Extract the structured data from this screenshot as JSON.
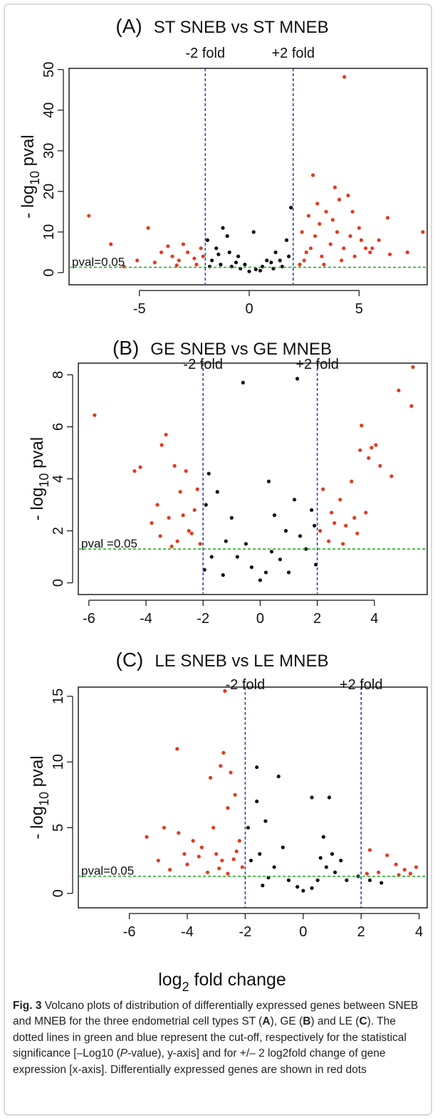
{
  "chart_data": [
    {
      "type": "scatter",
      "panel_label": "(A)",
      "title": "ST SNEB vs ST MNEB",
      "y_label": [
        "- log",
        "10",
        " pval"
      ],
      "xlim": [
        -8.2,
        8.1
      ],
      "ylim": [
        -3,
        50.3
      ],
      "xticks": [
        -5,
        0,
        5
      ],
      "yticks": [
        0,
        10,
        20,
        30,
        40,
        50
      ],
      "vlines": [
        -2,
        2
      ],
      "hline": 1.3,
      "vline_color": "#3344aa",
      "hline_color": "#22b022",
      "annotations": [
        "-2 fold",
        "+2 fold",
        "pval=0.05"
      ],
      "series": [
        {
          "color": "#111111",
          "x": [
            -1.9,
            -1.2,
            -1.5,
            -1,
            -0.5,
            0.2,
            -1.7,
            -1.3,
            -0.8,
            -0.4,
            0,
            0.3,
            0.6,
            1,
            1.4,
            1.8,
            1.9,
            1.7,
            1.2,
            0.8,
            -0.2,
            0.5,
            -0.6,
            1.5,
            -1.8,
            -0.9,
            1.1,
            -1.4
          ],
          "y": [
            8,
            11,
            6,
            9,
            4,
            10,
            3,
            2,
            1.5,
            1,
            0.3,
            0.8,
            1.5,
            2.5,
            3,
            4,
            16,
            8,
            5,
            3,
            2,
            0.5,
            2.5,
            1.5,
            1.5,
            5,
            1,
            4.5
          ]
        },
        {
          "color": "#e5391f",
          "x": [
            2.5,
            2.8,
            3,
            3.2,
            3.5,
            2.9,
            3.9,
            4.1,
            4.5,
            4.7,
            5,
            5.1,
            2.3,
            2.6,
            3.3,
            3.7,
            4,
            4.3,
            4.6,
            4.8,
            2.4,
            2.7,
            3.1,
            3.4,
            3.8,
            4.2,
            5.3,
            5.5,
            6.3,
            7.9,
            7.2,
            6.4,
            5.6,
            5.9,
            4.33,
            -7.3,
            -6.3,
            -4.6,
            -5.1,
            -4,
            -3.7,
            -3.5,
            -3.2,
            -3,
            -2.8,
            -2.5,
            -2.2,
            -4.3,
            -2.4,
            -3.3,
            -5.7,
            -2.1
          ],
          "y": [
            3,
            6,
            9,
            12,
            15,
            24,
            21,
            18,
            19,
            15,
            11,
            8,
            2,
            5,
            4,
            7,
            10,
            6,
            9,
            4,
            10,
            14,
            17,
            2,
            13,
            3,
            6,
            5,
            13.5,
            10,
            5,
            4.5,
            6,
            8,
            48.2,
            14,
            7,
            11,
            3,
            5,
            6.5,
            4,
            3,
            7,
            5,
            3.5,
            6,
            2.5,
            2,
            1.8,
            1.5,
            4
          ]
        }
      ]
    },
    {
      "type": "scatter",
      "panel_label": "(B)",
      "title": "GE SNEB vs GE MNEB",
      "y_label": [
        "- log",
        "10",
        " pval"
      ],
      "xlim": [
        -6.37,
        5.85
      ],
      "ylim": [
        -0.45,
        8.45
      ],
      "xticks": [
        -6,
        -4,
        -2,
        0,
        2,
        4
      ],
      "yticks": [
        0,
        2,
        4,
        6,
        8
      ],
      "vlines": [
        -2,
        2
      ],
      "hline": 1.3,
      "vline_color": "#3344aa",
      "hline_color": "#22b022",
      "annotations": [
        "-2 fold",
        "+2 fold",
        "pval =0.05"
      ],
      "series": [
        {
          "color": "#111111",
          "x": [
            -0.6,
            1.3,
            -1.8,
            0.3,
            -1.5,
            1.8,
            -1,
            -0.5,
            0,
            0.4,
            0.9,
            1.4,
            -1.9,
            -1.2,
            -0.3,
            0.2,
            0.7,
            1.6,
            1.9,
            -1.7,
            1.2,
            -0.8,
            0.5,
            1.95,
            -1.95,
            -1.3,
            1
          ],
          "y": [
            7.7,
            7.85,
            4.2,
            3.9,
            3.5,
            2.8,
            2.5,
            1.5,
            0.1,
            1.2,
            2,
            1.8,
            3,
            1.6,
            0.6,
            0.4,
            0.9,
            1.3,
            2.2,
            1,
            3.2,
            1,
            2.6,
            0.7,
            0.5,
            0.3,
            0.4
          ]
        },
        {
          "color": "#e5391f",
          "x": [
            -5.8,
            -4.4,
            -4.2,
            -3.3,
            -3.45,
            -3,
            -2.6,
            -3.6,
            -3.2,
            -2.8,
            -2.5,
            -3.5,
            -2.2,
            -2.9,
            -3.8,
            -2.3,
            -2.7,
            -3.1,
            -2.1,
            -2.4,
            5.35,
            4.85,
            5.3,
            3.55,
            3.5,
            3.9,
            4.05,
            4.2,
            4.6,
            3.8,
            3.2,
            2.8,
            2.2,
            2.5,
            3,
            3.7,
            2.4,
            2.9,
            3.4,
            2.1,
            2.6,
            3.3
          ],
          "y": [
            6.45,
            4.3,
            4.45,
            5.7,
            5.3,
            4.5,
            4.3,
            3,
            2.5,
            3.5,
            2,
            1.8,
            3.6,
            1.6,
            2.3,
            2.8,
            2.6,
            1.4,
            1.5,
            1.9,
            8.3,
            7.4,
            6.8,
            6.05,
            5.1,
            5.2,
            5.3,
            4.5,
            4.1,
            4.8,
            3.9,
            3.2,
            3.6,
            2.7,
            2.2,
            2.7,
            1.6,
            1.5,
            1.9,
            2,
            2.3,
            2.5
          ]
        }
      ]
    },
    {
      "type": "scatter",
      "panel_label": "(C)",
      "title": "LE SNEB vs LE MNEB",
      "y_label": [
        "- log",
        "10",
        " pval"
      ],
      "xlim": [
        -7.76,
        4.28
      ],
      "ylim": [
        -1.1,
        15.7
      ],
      "xticks": [
        -6,
        -4,
        -2,
        0,
        2,
        4
      ],
      "yticks": [
        0,
        5,
        10,
        15
      ],
      "vlines": [
        -2,
        2
      ],
      "hline": 1.3,
      "vline_color": "#3344aa",
      "hline_color": "#22b022",
      "annotations": [
        "-2 fold",
        "+2 fold",
        "pval=0.05"
      ],
      "series": [
        {
          "color": "#111111",
          "x": [
            -1.6,
            -0.85,
            0.3,
            0.9,
            -1.6,
            -1.3,
            -1.9,
            -1.5,
            -1,
            -0.5,
            0,
            0.5,
            0.8,
            1,
            0.7,
            1.3,
            1.5,
            2.3,
            2.7,
            1.9,
            -1.8,
            -1.2,
            -0.2,
            0.3,
            -0.7,
            1.1,
            0.6,
            -1.4
          ],
          "y": [
            9.6,
            8.9,
            7.3,
            7.3,
            7,
            5.5,
            5,
            3,
            2,
            1,
            0.2,
            1,
            2,
            3,
            4.3,
            2.5,
            1,
            1,
            0.8,
            1.3,
            2.5,
            1.2,
            0.5,
            0.4,
            3.5,
            1.6,
            2.7,
            0.6
          ]
        },
        {
          "color": "#e5391f",
          "x": [
            -2.7,
            -4.35,
            -2.75,
            -2.85,
            -3.2,
            -2.5,
            -2.35,
            -2.6,
            -5.4,
            -4.8,
            -4.3,
            -3.8,
            -3.5,
            -3,
            -2.8,
            -2.3,
            -2.1,
            -5,
            -4.6,
            -4,
            -3.3,
            -3.6,
            -2.6,
            -2.2,
            -3.1,
            -4.1,
            -2.4,
            -2.9,
            2.3,
            2.9,
            3.2,
            3.5,
            3.9,
            2.6,
            3.7,
            2.2,
            3.3
          ],
          "y": [
            15.4,
            11,
            10.7,
            9.7,
            8.8,
            9.2,
            7.5,
            6.5,
            4.3,
            5,
            4.6,
            4,
            3.5,
            3,
            2.5,
            3.2,
            2,
            2.5,
            1.8,
            2.2,
            1.6,
            2.8,
            1.5,
            4,
            5,
            3,
            2.6,
            1.9,
            3.3,
            2.9,
            2.2,
            1.8,
            2,
            1.6,
            1.5,
            1.5,
            1.4
          ]
        }
      ]
    }
  ],
  "x_label": [
    "log",
    "2",
    " fold change"
  ],
  "caption": [
    "Fig. 3",
    " Volcano plots of distribution of differentially expressed genes between SNEB and MNEB for the three endometrial cell types ST (",
    "A",
    "), GE (",
    "B",
    ") and LE (",
    "C",
    "). The dotted lines in green and blue represent the cut-off, respectively for the statistical significance [–Log10 (",
    "P",
    "-value), y-axis] and for +/– 2 log2fold change of gene expression [x-axis]. Differentially expressed genes are shown in red dots"
  ]
}
